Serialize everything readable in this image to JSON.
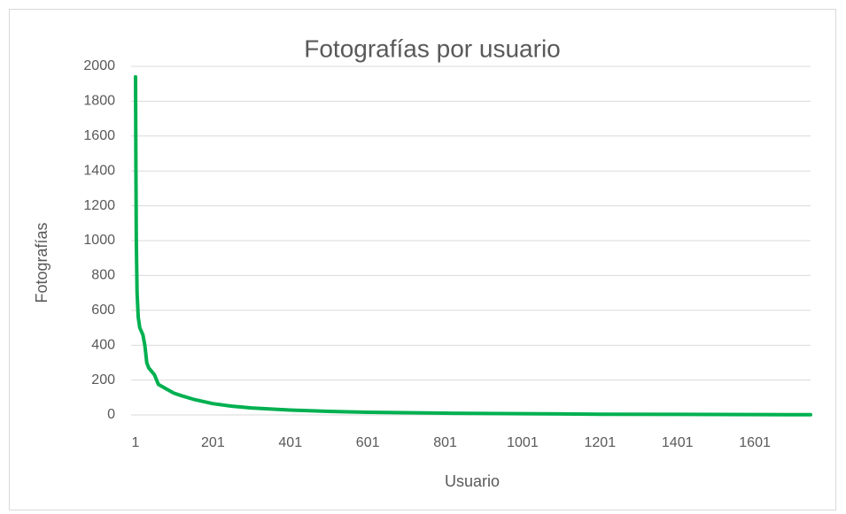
{
  "chart_data": {
    "type": "line",
    "title": "Fotografías por usuario",
    "x_label": "Usuario",
    "y_label": "Fotografías",
    "series": [
      {
        "name": "Fotografías",
        "color": "#00b050",
        "x": [
          1,
          2,
          3,
          5,
          8,
          12,
          20,
          25,
          30,
          35,
          50,
          60,
          80,
          100,
          120,
          150,
          200,
          250,
          300,
          400,
          500,
          600,
          800,
          1000,
          1200,
          1400,
          1600,
          1745
        ],
        "values": [
          1940,
          1400,
          1000,
          700,
          560,
          500,
          460,
          400,
          300,
          270,
          230,
          175,
          150,
          125,
          110,
          90,
          65,
          50,
          40,
          28,
          20,
          15,
          10,
          7,
          4,
          3,
          2,
          1
        ]
      }
    ],
    "xlim": [
      1,
      1745
    ],
    "xticks": [
      1,
      201,
      401,
      601,
      801,
      1001,
      1201,
      1401,
      1601
    ],
    "ylim": [
      0,
      2000
    ],
    "yticks": [
      0,
      200,
      400,
      600,
      800,
      1000,
      1200,
      1400,
      1600,
      1800,
      2000
    ],
    "grid": true
  }
}
